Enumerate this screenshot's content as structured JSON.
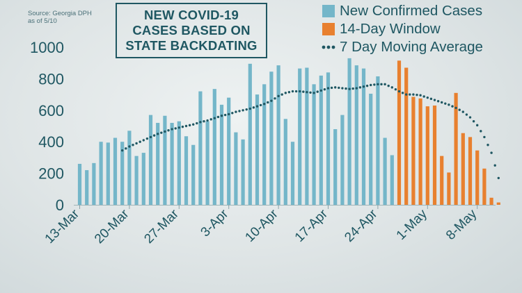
{
  "source": {
    "line1": "Source: Georgia DPH",
    "line2": "as of 5/10"
  },
  "title_lines": [
    "NEW COVID-19",
    "CASES BASED ON",
    "STATE BACKDATING"
  ],
  "legend": [
    {
      "label": "New Confirmed Cases",
      "color": "#74b6c9",
      "icon": "square-swatch"
    },
    {
      "label": "14-Day Window",
      "color": "#e8802f",
      "icon": "square-swatch"
    },
    {
      "label": "7 Day Moving Average",
      "color": "#1f5762",
      "icon": "dotted-line"
    }
  ],
  "colors": {
    "confirmed": "#74b6c9",
    "window": "#e8802f",
    "average": "#1f5762",
    "text": "#1f5762"
  },
  "chart_data": {
    "type": "bar",
    "title": "NEW COVID-19 CASES BASED ON STATE BACKDATING",
    "ylim": [
      0,
      1000
    ],
    "yticks": [
      0,
      200,
      400,
      600,
      800,
      1000
    ],
    "x_start_date": "2020-03-13",
    "xtick_labels": [
      {
        "label": "13-Mar",
        "day_index": 0
      },
      {
        "label": "20-Mar",
        "day_index": 7
      },
      {
        "label": "27-Mar",
        "day_index": 14
      },
      {
        "label": "3-Apr",
        "day_index": 21
      },
      {
        "label": "10-Apr",
        "day_index": 28
      },
      {
        "label": "17-Apr",
        "day_index": 35
      },
      {
        "label": "24-Apr",
        "day_index": 42
      },
      {
        "label": "1-May",
        "day_index": 49
      },
      {
        "label": "8-May",
        "day_index": 56
      }
    ],
    "series": [
      {
        "name": "New Confirmed Cases",
        "start_index": 0,
        "values": [
          260,
          220,
          265,
          400,
          395,
          425,
          400,
          470,
          310,
          330,
          570,
          520,
          565,
          520,
          530,
          435,
          380,
          720,
          530,
          735,
          635,
          680,
          460,
          415,
          895,
          700,
          765,
          845,
          885,
          545,
          400,
          865,
          870,
          765,
          820,
          840,
          480,
          570,
          930,
          885,
          865,
          705,
          815,
          425,
          315
        ]
      },
      {
        "name": "14-Day Window",
        "start_index": 45,
        "values": [
          915,
          870,
          685,
          675,
          625,
          630,
          310,
          205,
          710,
          455,
          430,
          345,
          230,
          45,
          15
        ]
      },
      {
        "name": "7 Day Moving Average",
        "type": "line",
        "start_index": 6,
        "values": [
          345,
          370,
          390,
          410,
          430,
          450,
          465,
          480,
          490,
          500,
          510,
          525,
          535,
          550,
          565,
          575,
          590,
          600,
          610,
          625,
          640,
          660,
          690,
          710,
          720,
          720,
          715,
          710,
          725,
          740,
          745,
          740,
          735,
          740,
          750,
          760,
          765,
          765,
          745,
          720,
          700,
          700,
          695,
          680,
          665,
          650,
          635,
          615,
          590,
          555,
          505,
          430,
          330,
          170
        ]
      }
    ]
  }
}
